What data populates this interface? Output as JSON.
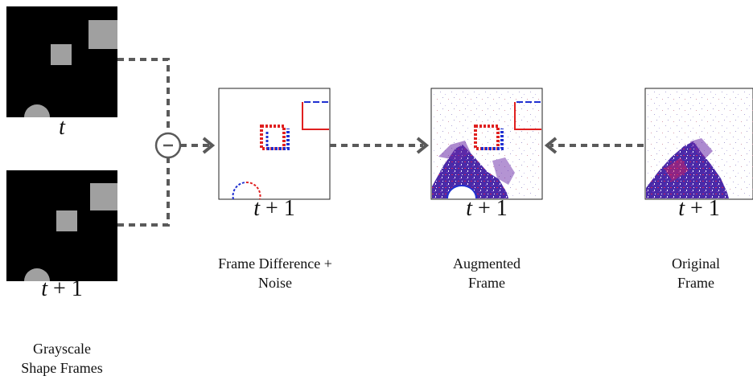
{
  "frames": {
    "frame_t_label": "t",
    "frame_t1_label_var": "t",
    "frame_t1_label_rest": "+ 1"
  },
  "captions": {
    "grayscale": [
      "Grayscale",
      "Shape Frames"
    ],
    "frame_difference": [
      "Frame Difference +",
      "Noise"
    ],
    "augmented": [
      "Augmented",
      "Frame"
    ],
    "original": [
      "Original",
      "Frame"
    ]
  },
  "operator_symbol": "-",
  "colors": {
    "arrow": "#5a5a5a",
    "shape_gray": "#a0a0a0",
    "positive_event": "#e02020",
    "negative_event": "#2030d0",
    "event_purple": "#6a2aa8"
  }
}
